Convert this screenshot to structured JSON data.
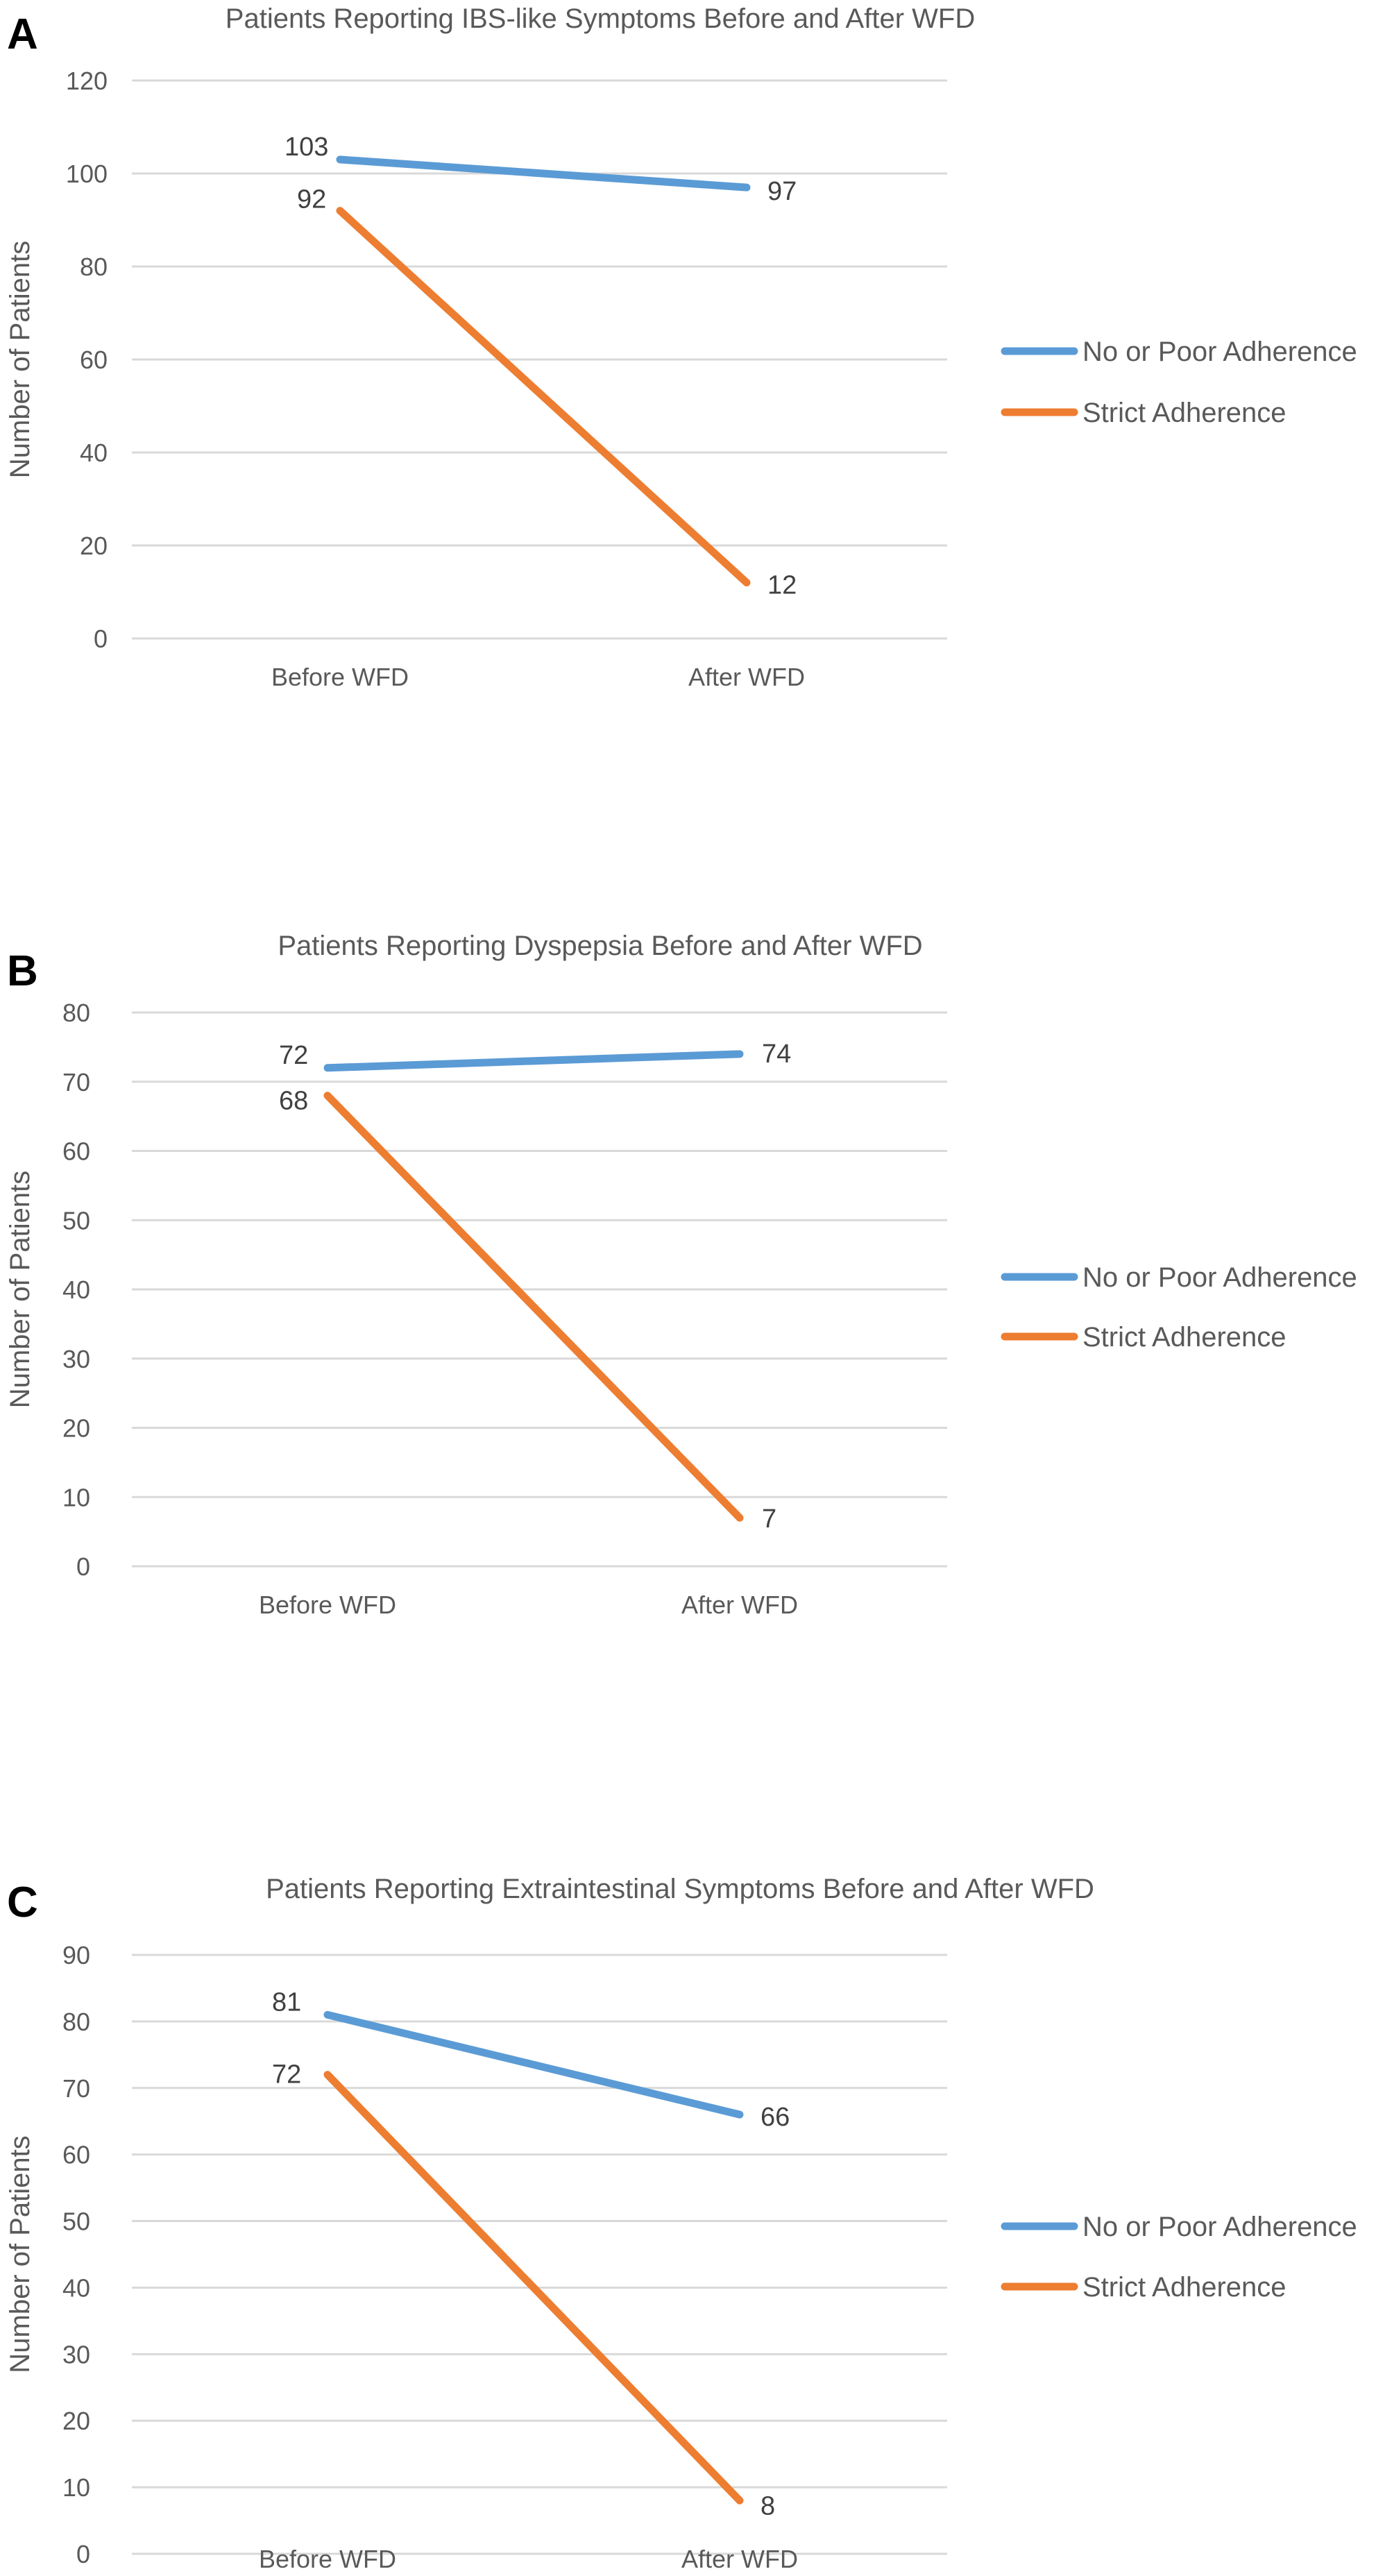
{
  "chart_data": [
    {
      "panel": "A",
      "type": "line",
      "title": "Patients Reporting IBS-like Symptoms Before and After WFD",
      "categories": [
        "Before WFD",
        "After WFD"
      ],
      "ylabel": "Number of Patients",
      "xlabel": "",
      "ylim": [
        0,
        120
      ],
      "yticks": [
        "0",
        "20",
        "40",
        "60",
        "80",
        "100",
        "120"
      ],
      "grid": true,
      "legend": "right",
      "series": [
        {
          "name": "No or Poor Adherence",
          "color": "#5B9BD5",
          "values": [
            103,
            97
          ],
          "labels": [
            "103",
            "97"
          ]
        },
        {
          "name": "Strict Adherence",
          "color": "#ED7D31",
          "values": [
            92,
            12
          ],
          "labels": [
            "92",
            "12"
          ]
        }
      ]
    },
    {
      "panel": "B",
      "type": "line",
      "title": "Patients Reporting Dyspepsia Before and After WFD",
      "categories": [
        "Before WFD",
        "After WFD"
      ],
      "ylabel": "Number of Patients",
      "xlabel": "",
      "ylim": [
        0,
        80
      ],
      "yticks": [
        "0",
        "10",
        "20",
        "30",
        "40",
        "50",
        "60",
        "70",
        "80"
      ],
      "grid": true,
      "legend": "right",
      "series": [
        {
          "name": "No or Poor Adherence",
          "color": "#5B9BD5",
          "values": [
            72,
            74
          ],
          "labels": [
            "72",
            "74"
          ]
        },
        {
          "name": "Strict Adherence",
          "color": "#ED7D31",
          "values": [
            68,
            7
          ],
          "labels": [
            "68",
            "7"
          ]
        }
      ]
    },
    {
      "panel": "C",
      "type": "line",
      "title": "Patients Reporting Extraintestinal Symptoms Before and After WFD",
      "categories": [
        "Before WFD",
        "After WFD"
      ],
      "ylabel": "Number of Patients",
      "xlabel": "",
      "ylim": [
        0,
        90
      ],
      "yticks": [
        "0",
        "10",
        "20",
        "30",
        "40",
        "50",
        "60",
        "70",
        "80",
        "90"
      ],
      "grid": true,
      "legend": "right",
      "series": [
        {
          "name": "No or Poor Adherence",
          "color": "#5B9BD5",
          "values": [
            81,
            66
          ],
          "labels": [
            "81",
            "66"
          ]
        },
        {
          "name": "Strict Adherence",
          "color": "#ED7D31",
          "values": [
            72,
            8
          ],
          "labels": [
            "72",
            "8"
          ]
        }
      ]
    }
  ]
}
